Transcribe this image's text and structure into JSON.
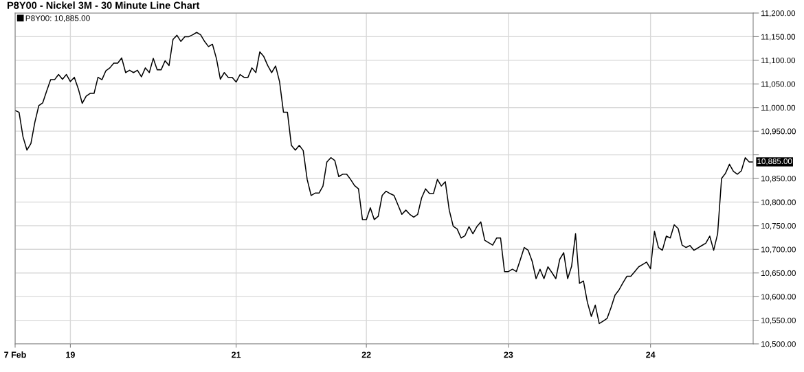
{
  "chart_data": {
    "type": "line",
    "title": "P8Y00 - Nickel 3M - 30 Minute Line Chart",
    "categories": [
      "7 Feb",
      null,
      null,
      null,
      null,
      null,
      null,
      null,
      null,
      null,
      null,
      null,
      null,
      null,
      "19",
      null,
      null,
      null,
      null,
      null,
      null,
      null,
      null,
      null,
      null,
      null,
      null,
      null,
      null,
      null,
      null,
      null,
      null,
      null,
      null,
      null,
      null,
      null,
      null,
      null,
      null,
      null,
      null,
      null,
      null,
      null,
      null,
      null,
      null,
      null,
      null,
      null,
      null,
      null,
      null,
      null,
      "21",
      null,
      null,
      null,
      null,
      null,
      null,
      null,
      null,
      null,
      null,
      null,
      null,
      null,
      null,
      null,
      null,
      null,
      null,
      null,
      null,
      null,
      null,
      null,
      null,
      null,
      null,
      null,
      null,
      null,
      null,
      null,
      null,
      "22",
      null,
      null,
      null,
      null,
      null,
      null,
      null,
      null,
      null,
      null,
      null,
      null,
      null,
      null,
      null,
      null,
      null,
      null,
      null,
      null,
      null,
      null,
      null,
      null,
      null,
      null,
      null,
      null,
      null,
      null,
      null,
      null,
      null,
      null,
      null,
      "23",
      null,
      null,
      null,
      null,
      null,
      null,
      null,
      null,
      null,
      null,
      null,
      null,
      null,
      null,
      null,
      null,
      null,
      null,
      null,
      null,
      null,
      null,
      null,
      null,
      null,
      null,
      null,
      null,
      null,
      null,
      null,
      null,
      null,
      null,
      null,
      "24",
      null,
      null,
      null,
      null,
      null,
      null,
      null,
      null,
      null,
      null,
      null,
      null,
      null,
      null,
      null,
      null,
      null,
      null,
      null,
      null,
      null,
      null,
      null,
      null,
      null,
      null
    ],
    "ylim": [
      10500,
      11200
    ],
    "yticks": [
      {
        "value": 10500,
        "label": "10,500.00"
      },
      {
        "value": 10550,
        "label": "10,550.00"
      },
      {
        "value": 10600,
        "label": "10,600.00"
      },
      {
        "value": 10650,
        "label": "10,650.00"
      },
      {
        "value": 10700,
        "label": "10,700.00"
      },
      {
        "value": 10750,
        "label": "10,750.00"
      },
      {
        "value": 10800,
        "label": "10,800.00"
      },
      {
        "value": 10850,
        "label": "10,850.00"
      },
      {
        "value": 10900,
        "label": null
      },
      {
        "value": 10950,
        "label": "10,950.00"
      },
      {
        "value": 11000,
        "label": "11,000.00"
      },
      {
        "value": 11050,
        "label": "11,050.00"
      },
      {
        "value": 11100,
        "label": "11,100.00"
      },
      {
        "value": 11150,
        "label": "11,150.00"
      },
      {
        "value": 11200,
        "label": "11,200.00"
      }
    ],
    "grid": true,
    "legend": "top left",
    "marker": "none",
    "line_style": "solid",
    "annotations": [
      "10,885.00"
    ],
    "series": [
      {
        "name": "P8Y00: 10,885.00",
        "color": "#000000",
        "values": [
          10994,
          10990,
          10938,
          10910,
          10924,
          10969,
          11004,
          11010,
          11035,
          11059,
          11059,
          11070,
          11060,
          11070,
          11055,
          11064,
          11040,
          11009,
          11024,
          11030,
          11030,
          11064,
          11059,
          11078,
          11084,
          11094,
          11094,
          11105,
          11074,
          11079,
          11074,
          11079,
          11065,
          11084,
          11074,
          11104,
          11080,
          11080,
          11099,
          11089,
          11144,
          11153,
          11140,
          11150,
          11150,
          11154,
          11159,
          11154,
          11140,
          11129,
          11134,
          11104,
          11060,
          11074,
          11064,
          11064,
          11054,
          11070,
          11064,
          11064,
          11084,
          11074,
          11118,
          11108,
          11089,
          11074,
          11088,
          11055,
          10990,
          10990,
          10920,
          10910,
          10920,
          10909,
          10848,
          10814,
          10819,
          10819,
          10834,
          10885,
          10894,
          10888,
          10854,
          10859,
          10859,
          10848,
          10835,
          10828,
          10763,
          10763,
          10788,
          10763,
          10770,
          10814,
          10823,
          10818,
          10814,
          10794,
          10774,
          10783,
          10774,
          10768,
          10774,
          10809,
          10828,
          10818,
          10818,
          10848,
          10834,
          10843,
          10783,
          10749,
          10743,
          10724,
          10729,
          10748,
          10733,
          10748,
          10758,
          10719,
          10714,
          10709,
          10724,
          10724,
          10653,
          10653,
          10658,
          10653,
          10678,
          10704,
          10698,
          10675,
          10638,
          10658,
          10638,
          10663,
          10651,
          10638,
          10679,
          10693,
          10638,
          10664,
          10733,
          10628,
          10633,
          10588,
          10558,
          10582,
          10543,
          10548,
          10554,
          10577,
          10603,
          10614,
          10629,
          10643,
          10643,
          10653,
          10663,
          10668,
          10673,
          10659,
          10738,
          10704,
          10698,
          10728,
          10724,
          10752,
          10744,
          10709,
          10704,
          10708,
          10698,
          10703,
          10708,
          10713,
          10728,
          10698,
          10733,
          10850,
          10861,
          10880,
          10865,
          10859,
          10866,
          10894,
          10885,
          10885
        ]
      }
    ]
  }
}
